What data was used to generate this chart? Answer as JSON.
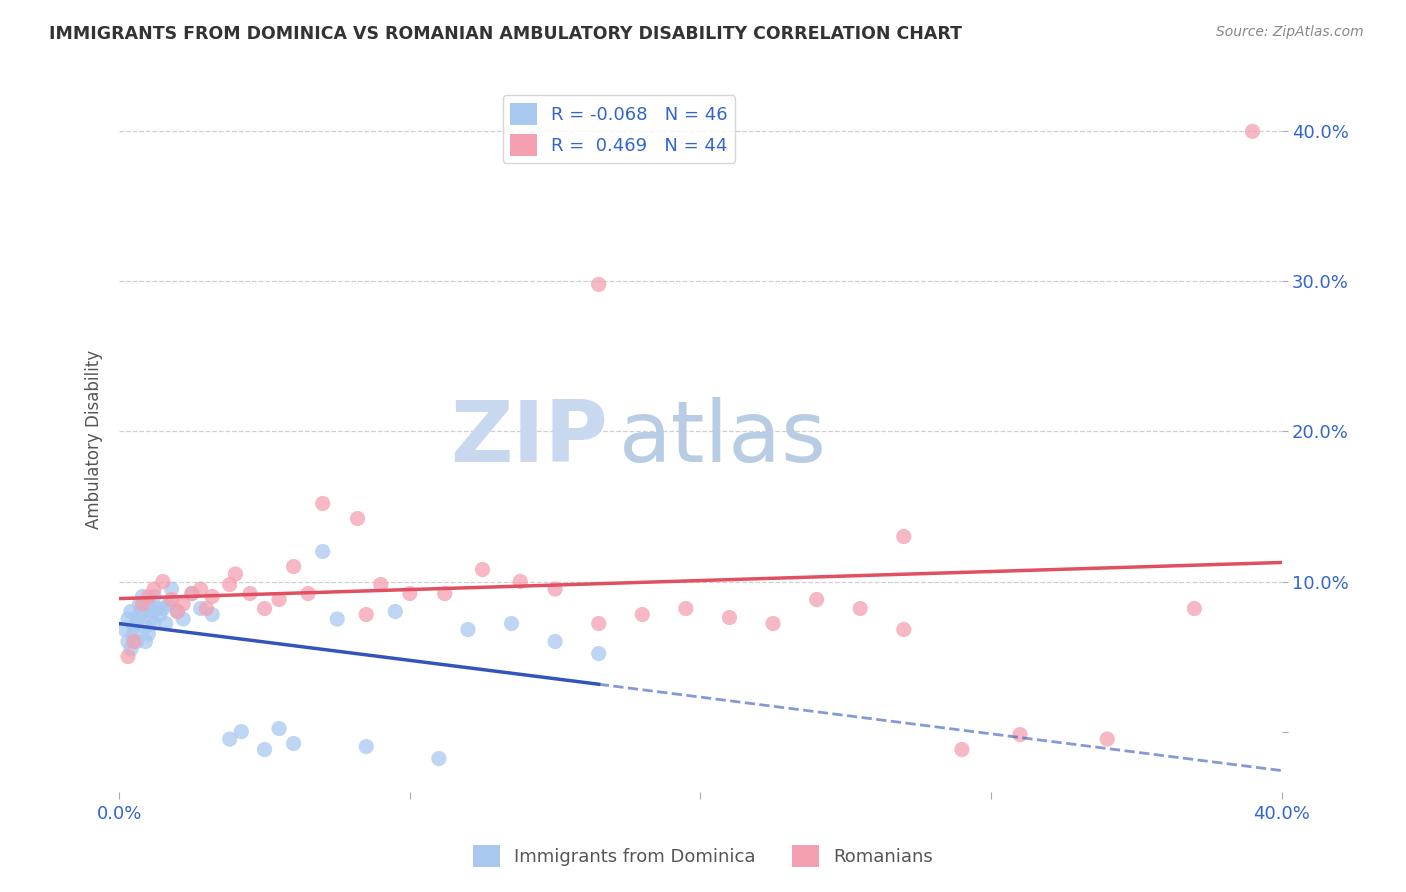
{
  "title": "IMMIGRANTS FROM DOMINICA VS ROMANIAN AMBULATORY DISABILITY CORRELATION CHART",
  "source": "Source: ZipAtlas.com",
  "ylabel": "Ambulatory Disability",
  "legend_label1": "Immigrants from Dominica",
  "legend_label2": "Romanians",
  "R1": -0.068,
  "N1": 46,
  "R2": 0.469,
  "N2": 44,
  "color1": "#A8C8F0",
  "color2": "#F4A0B0",
  "trendline1_color": "#3355BB",
  "trendline2_color": "#E05060",
  "background": "#FFFFFF",
  "watermark_zip": "ZIP",
  "watermark_atlas": "atlas",
  "xlim": [
    0.0,
    0.4
  ],
  "ylim": [
    -0.04,
    0.43
  ],
  "grid_color": "#BBBBBB",
  "title_color": "#333333",
  "tick_color": "#3366CC",
  "blue_x": [
    0.002,
    0.003,
    0.003,
    0.004,
    0.004,
    0.005,
    0.005,
    0.006,
    0.006,
    0.007,
    0.007,
    0.008,
    0.008,
    0.009,
    0.009,
    0.01,
    0.01,
    0.011,
    0.011,
    0.012,
    0.012,
    0.013,
    0.014,
    0.015,
    0.016,
    0.017,
    0.018,
    0.02,
    0.022,
    0.025,
    0.028,
    0.032,
    0.038,
    0.042,
    0.05,
    0.055,
    0.06,
    0.07,
    0.075,
    0.085,
    0.095,
    0.11,
    0.12,
    0.135,
    0.15,
    0.165
  ],
  "blue_y": [
    0.068,
    0.075,
    0.06,
    0.055,
    0.08,
    0.07,
    0.065,
    0.06,
    0.072,
    0.078,
    0.085,
    0.08,
    0.09,
    0.07,
    0.06,
    0.065,
    0.085,
    0.08,
    0.075,
    0.072,
    0.09,
    0.082,
    0.078,
    0.082,
    0.072,
    0.085,
    0.095,
    0.08,
    0.075,
    0.092,
    0.082,
    0.078,
    -0.005,
    0.0,
    -0.012,
    0.002,
    -0.008,
    0.12,
    0.075,
    -0.01,
    0.08,
    -0.018,
    0.068,
    0.072,
    0.06,
    0.052
  ],
  "pink_x": [
    0.003,
    0.005,
    0.008,
    0.01,
    0.012,
    0.015,
    0.018,
    0.02,
    0.022,
    0.025,
    0.028,
    0.03,
    0.032,
    0.038,
    0.04,
    0.045,
    0.05,
    0.055,
    0.06,
    0.065,
    0.07,
    0.082,
    0.09,
    0.1,
    0.112,
    0.125,
    0.138,
    0.15,
    0.165,
    0.18,
    0.195,
    0.21,
    0.225,
    0.24,
    0.255,
    0.27,
    0.29,
    0.31,
    0.34,
    0.37,
    0.085,
    0.165,
    0.27,
    0.39
  ],
  "pink_y": [
    0.05,
    0.06,
    0.085,
    0.09,
    0.095,
    0.1,
    0.088,
    0.08,
    0.085,
    0.092,
    0.095,
    0.082,
    0.09,
    0.098,
    0.105,
    0.092,
    0.082,
    0.088,
    0.11,
    0.092,
    0.152,
    0.142,
    0.098,
    0.092,
    0.092,
    0.108,
    0.1,
    0.095,
    0.298,
    0.078,
    0.082,
    0.076,
    0.072,
    0.088,
    0.082,
    0.13,
    -0.012,
    -0.002,
    -0.005,
    0.082,
    0.078,
    0.072,
    0.068,
    0.4
  ]
}
